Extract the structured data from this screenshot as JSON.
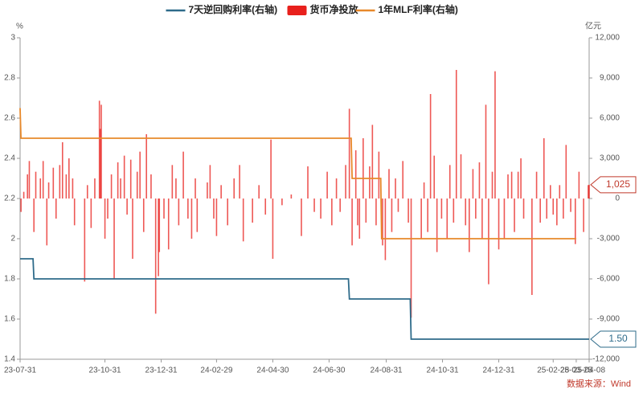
{
  "chart_data": {
    "type": "combo",
    "y_unit": "%",
    "y2_unit": "亿元",
    "source": "数据来源：Wind",
    "xlim": [
      "23-07-31",
      "25-04-08"
    ],
    "xticks": [
      "23-07-31",
      "23-10-31",
      "23-12-31",
      "24-02-29",
      "24-04-30",
      "24-06-30",
      "24-08-31",
      "24-10-31",
      "24-12-31",
      "25-02-28",
      "25-03-25",
      "25-04-08"
    ],
    "ylim": [
      1.4,
      3
    ],
    "yticks": [
      1.4,
      1.6,
      1.8,
      2,
      2.2,
      2.4,
      2.6,
      2.8,
      3
    ],
    "y2lim": [
      -12000,
      12000
    ],
    "y2ticks": [
      {
        "value": -12000,
        "label": "-12,000"
      },
      {
        "value": -9000,
        "label": "-9,000"
      },
      {
        "value": -6000,
        "label": "-6,000"
      },
      {
        "value": -3000,
        "label": "-3,000"
      },
      0,
      {
        "value": 3000,
        "label": "3,000"
      },
      {
        "value": 6000,
        "label": "6,000"
      },
      {
        "value": 9000,
        "label": "9,000"
      },
      {
        "value": 12000,
        "label": "12,000"
      }
    ],
    "series": [
      {
        "name": "7天逆回购利率(右轴)",
        "type": "line",
        "color": "#2e6b8a",
        "x": [
          "23-07-31",
          "23-08-14",
          "23-08-15",
          "24-07-21",
          "24-07-22",
          "24-09-26",
          "24-09-27",
          "25-04-08"
        ],
        "values": [
          1.9,
          1.9,
          1.8,
          1.8,
          1.7,
          1.7,
          1.5,
          1.5
        ]
      },
      {
        "name": "货币净投放",
        "type": "bar",
        "axis": "y2",
        "color": "#e8201c",
        "x": [
          "23-08-01",
          "23-08-04",
          "23-08-08",
          "23-08-10",
          "23-08-15",
          "23-08-17",
          "23-08-22",
          "23-08-25",
          "23-08-29",
          "23-08-31",
          "23-09-05",
          "23-09-08",
          "23-09-12",
          "23-09-15",
          "23-09-19",
          "23-09-22",
          "23-09-26",
          "23-09-28",
          "23-10-09",
          "23-10-12",
          "23-10-16",
          "23-10-20",
          "23-10-25",
          "23-10-26",
          "23-10-27",
          "23-10-31",
          "23-11-03",
          "23-11-07",
          "23-11-10",
          "23-11-14",
          "23-11-17",
          "23-11-21",
          "23-11-24",
          "23-11-28",
          "23-11-30",
          "23-12-05",
          "23-12-08",
          "23-12-12",
          "23-12-15",
          "23-12-20",
          "23-12-25",
          "23-12-28",
          "23-12-29",
          "24-01-03",
          "24-01-08",
          "24-01-12",
          "24-01-16",
          "24-01-19",
          "24-01-24",
          "24-01-29",
          "24-02-02",
          "24-02-06",
          "24-02-08",
          "24-02-19",
          "24-02-22",
          "24-02-26",
          "24-02-29",
          "24-03-05",
          "24-03-12",
          "24-03-19",
          "24-03-25",
          "24-03-29",
          "24-04-08",
          "24-04-15",
          "24-04-22",
          "24-04-28",
          "24-04-30",
          "24-05-10",
          "24-05-20",
          "24-05-31",
          "24-06-07",
          "24-06-14",
          "24-06-21",
          "24-06-28",
          "24-07-03",
          "24-07-08",
          "24-07-12",
          "24-07-18",
          "24-07-22",
          "24-07-25",
          "24-07-29",
          "24-07-31",
          "24-08-02",
          "24-08-06",
          "24-08-09",
          "24-08-13",
          "24-08-16",
          "24-08-20",
          "24-08-23",
          "24-08-27",
          "24-08-30",
          "24-09-03",
          "24-09-06",
          "24-09-10",
          "24-09-13",
          "24-09-18",
          "24-09-24",
          "24-09-27",
          "24-10-08",
          "24-10-11",
          "24-10-15",
          "24-10-18",
          "24-10-22",
          "24-10-25",
          "24-10-30",
          "24-11-05",
          "24-11-08",
          "24-11-12",
          "24-11-15",
          "24-11-20",
          "24-11-25",
          "24-11-29",
          "24-12-03",
          "24-12-06",
          "24-12-10",
          "24-12-13",
          "24-12-17",
          "24-12-20",
          "24-12-24",
          "24-12-27",
          "24-12-31",
          "25-01-06",
          "25-01-10",
          "25-01-14",
          "25-01-17",
          "25-01-21",
          "25-01-24",
          "25-01-27",
          "25-02-05",
          "25-02-10",
          "25-02-14",
          "25-02-18",
          "25-02-21",
          "25-02-25",
          "25-02-28",
          "25-03-04",
          "25-03-07",
          "25-03-11",
          "25-03-14",
          "25-03-19",
          "25-03-24",
          "25-03-28",
          "25-04-02",
          "25-04-07",
          "25-04-08"
        ],
        "values": [
          -1000,
          500,
          1800,
          2800,
          -2500,
          2000,
          1500,
          2800,
          -3500,
          1200,
          2300,
          -1500,
          2500,
          4200,
          1800,
          3000,
          1500,
          -2000,
          -6200,
          1000,
          -2200,
          1500,
          7300,
          5200,
          7000,
          -3000,
          -1500,
          1800,
          -6000,
          2700,
          1500,
          3200,
          -1200,
          2900,
          -4500,
          2000,
          3500,
          -2500,
          4800,
          1800,
          -8600,
          -5800,
          -4000,
          -1500,
          -3800,
          2500,
          1500,
          -2000,
          3500,
          -1500,
          -3000,
          1500,
          -2500,
          1200,
          2500,
          -1500,
          -2800,
          1000,
          -2000,
          1500,
          2500,
          -3200,
          -1800,
          1000,
          -1200,
          4400,
          -4500,
          -500,
          300,
          -2800,
          2400,
          -1000,
          -1500,
          2000,
          -2000,
          1500,
          -1000,
          2500,
          6700,
          -3500,
          3600,
          -2000,
          -3000,
          4500,
          -1800,
          2400,
          5500,
          -2000,
          3500,
          -3500,
          -4600,
          2200,
          -2500,
          1500,
          -1000,
          2800,
          -1800,
          -8900,
          -3000,
          1200,
          -2500,
          7800,
          3200,
          -4000,
          -1500,
          -3000,
          2500,
          -1800,
          9600,
          3300,
          -2000,
          -4000,
          2200,
          -1500,
          2700,
          -3000,
          7000,
          -6400,
          2000,
          9500,
          -3800,
          -3000,
          1800,
          2000,
          -2500,
          2000,
          3000,
          -1500,
          -7200,
          2000,
          -1800,
          4500,
          -1500,
          1000,
          -1200,
          -2000,
          1000,
          -1500,
          4000,
          -1000,
          -3400,
          2000,
          -2500,
          1000,
          1025
        ]
      },
      {
        "name": "1年MLF利率(右轴)",
        "type": "line",
        "color": "#e8892b",
        "x": [
          "23-07-31",
          "23-08-01",
          "24-07-24",
          "24-07-25",
          "24-08-25",
          "24-08-26",
          "25-03-25"
        ],
        "values": [
          2.65,
          2.5,
          2.5,
          2.3,
          2.3,
          2.0,
          2.0
        ]
      }
    ],
    "end_labels": [
      {
        "value": 1025,
        "label": "1,025",
        "axis": "y2",
        "color": "#c0392b"
      },
      {
        "value": 1.5,
        "label": "1.50",
        "axis": "y",
        "color": "#2e6b8a"
      }
    ]
  }
}
